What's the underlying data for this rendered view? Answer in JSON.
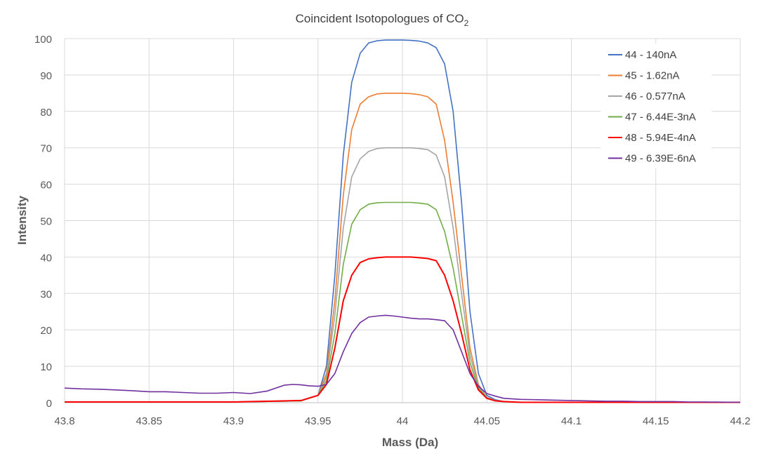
{
  "chart_data": {
    "type": "line",
    "title_main": "Coincident Isotopologues of CO",
    "title_sub": "2",
    "xlabel": "Mass (Da)",
    "ylabel": "Intensity",
    "xlim": [
      43.8,
      44.2
    ],
    "ylim": [
      0,
      100
    ],
    "xticks": [
      "43.8",
      "43.85",
      "43.9",
      "43.95",
      "44",
      "44.05",
      "44.1",
      "44.15",
      "44.2"
    ],
    "yticks": [
      "0",
      "10",
      "20",
      "30",
      "40",
      "50",
      "60",
      "70",
      "80",
      "90",
      "100"
    ],
    "grid": "horizontal",
    "legend_position": "top-right",
    "series": [
      {
        "name": "44 - 140nA",
        "color": "#4472C4",
        "x": [
          43.8,
          43.9,
          43.94,
          43.95,
          43.955,
          43.96,
          43.965,
          43.97,
          43.975,
          43.98,
          43.985,
          43.99,
          43.995,
          44.0,
          44.005,
          44.01,
          44.015,
          44.02,
          44.025,
          44.03,
          44.035,
          44.04,
          44.045,
          44.05,
          44.055,
          44.06,
          44.07,
          44.1,
          44.2
        ],
        "y": [
          0.2,
          0.2,
          0.5,
          2,
          10,
          35,
          68,
          88,
          96,
          98.8,
          99.4,
          99.6,
          99.6,
          99.6,
          99.5,
          99.3,
          98.8,
          97.5,
          93,
          80,
          55,
          25,
          8,
          2,
          0.8,
          0.3,
          0.1,
          0.1,
          0.1
        ]
      },
      {
        "name": "45 - 1.62nA",
        "color": "#ED7D31",
        "x": [
          43.8,
          43.9,
          43.94,
          43.95,
          43.955,
          43.96,
          43.965,
          43.97,
          43.975,
          43.98,
          43.985,
          43.99,
          43.995,
          44.0,
          44.005,
          44.01,
          44.015,
          44.02,
          44.025,
          44.03,
          44.035,
          44.04,
          44.045,
          44.05,
          44.055,
          44.06,
          44.07,
          44.1,
          44.2
        ],
        "y": [
          0.2,
          0.2,
          0.5,
          2,
          8,
          28,
          57,
          75,
          82,
          84,
          84.8,
          85,
          85,
          85,
          84.9,
          84.6,
          84,
          82,
          72,
          55,
          35,
          15,
          5,
          1.5,
          0.6,
          0.3,
          0.1,
          0.1,
          0.1
        ]
      },
      {
        "name": "46 - 0.577nA",
        "color": "#A5A5A5",
        "x": [
          43.8,
          43.9,
          43.94,
          43.95,
          43.955,
          43.96,
          43.965,
          43.97,
          43.975,
          43.98,
          43.985,
          43.99,
          43.995,
          44.0,
          44.005,
          44.01,
          44.015,
          44.02,
          44.025,
          44.03,
          44.035,
          44.04,
          44.045,
          44.05,
          44.055,
          44.06,
          44.07,
          44.1,
          44.2
        ],
        "y": [
          0.2,
          0.2,
          0.5,
          2,
          7,
          24,
          48,
          62,
          67,
          69,
          69.8,
          70,
          70,
          70,
          70,
          69.8,
          69.5,
          68,
          62,
          48,
          30,
          13,
          4.5,
          1.5,
          0.6,
          0.3,
          0.1,
          0.1,
          0.1
        ]
      },
      {
        "name": "47 - 6.44E-3nA",
        "color": "#70AD47",
        "x": [
          43.8,
          43.9,
          43.94,
          43.95,
          43.955,
          43.96,
          43.965,
          43.97,
          43.975,
          43.98,
          43.985,
          43.99,
          43.995,
          44.0,
          44.005,
          44.01,
          44.015,
          44.02,
          44.025,
          44.03,
          44.035,
          44.04,
          44.045,
          44.05,
          44.055,
          44.06,
          44.07,
          44.1,
          44.2
        ],
        "y": [
          0.2,
          0.2,
          0.5,
          2,
          6,
          19,
          38,
          49,
          53,
          54.5,
          54.9,
          55,
          55,
          55,
          55,
          54.8,
          54.5,
          53,
          47,
          37,
          24,
          11,
          4,
          1.3,
          0.5,
          0.3,
          0.1,
          0.1,
          0.1
        ]
      },
      {
        "name": "48 - 5.94E-4nA",
        "color": "#FF0000",
        "x": [
          43.8,
          43.9,
          43.94,
          43.95,
          43.955,
          43.96,
          43.965,
          43.97,
          43.975,
          43.98,
          43.985,
          43.99,
          43.995,
          44.0,
          44.005,
          44.01,
          44.015,
          44.02,
          44.025,
          44.03,
          44.035,
          44.04,
          44.045,
          44.05,
          44.055,
          44.06,
          44.07,
          44.1,
          44.2
        ],
        "y": [
          0.2,
          0.2,
          0.6,
          2,
          5,
          15,
          28,
          35,
          38.5,
          39.5,
          39.8,
          40,
          40,
          40,
          40,
          39.8,
          39.6,
          39,
          35,
          28,
          19,
          9,
          3.5,
          1.2,
          0.5,
          0.3,
          0.1,
          0.1,
          0.1
        ]
      },
      {
        "name": "49 - 6.39E-6nA",
        "color": "#7030A0",
        "x": [
          43.8,
          43.81,
          43.82,
          43.83,
          43.84,
          43.85,
          43.86,
          43.87,
          43.88,
          43.89,
          43.9,
          43.91,
          43.92,
          43.93,
          43.935,
          43.94,
          43.945,
          43.95,
          43.955,
          43.96,
          43.965,
          43.97,
          43.975,
          43.98,
          43.985,
          43.99,
          43.995,
          44.0,
          44.005,
          44.01,
          44.015,
          44.02,
          44.025,
          44.03,
          44.035,
          44.04,
          44.045,
          44.05,
          44.055,
          44.06,
          44.07,
          44.08,
          44.09,
          44.1,
          44.11,
          44.12,
          44.13,
          44.14,
          44.15,
          44.16,
          44.17,
          44.18,
          44.2
        ],
        "y": [
          4,
          3.8,
          3.7,
          3.5,
          3.3,
          3.0,
          3.0,
          2.8,
          2.6,
          2.6,
          2.8,
          2.5,
          3.2,
          4.8,
          5.0,
          4.9,
          4.6,
          4.5,
          5,
          8,
          14,
          19,
          22,
          23.5,
          23.8,
          24,
          23.8,
          23.5,
          23.2,
          23,
          23,
          22.8,
          22.5,
          20,
          14,
          8,
          4.5,
          2.5,
          1.8,
          1.2,
          0.9,
          0.8,
          0.7,
          0.6,
          0.5,
          0.4,
          0.4,
          0.3,
          0.3,
          0.3,
          0.2,
          0.2,
          0.1
        ]
      }
    ]
  }
}
